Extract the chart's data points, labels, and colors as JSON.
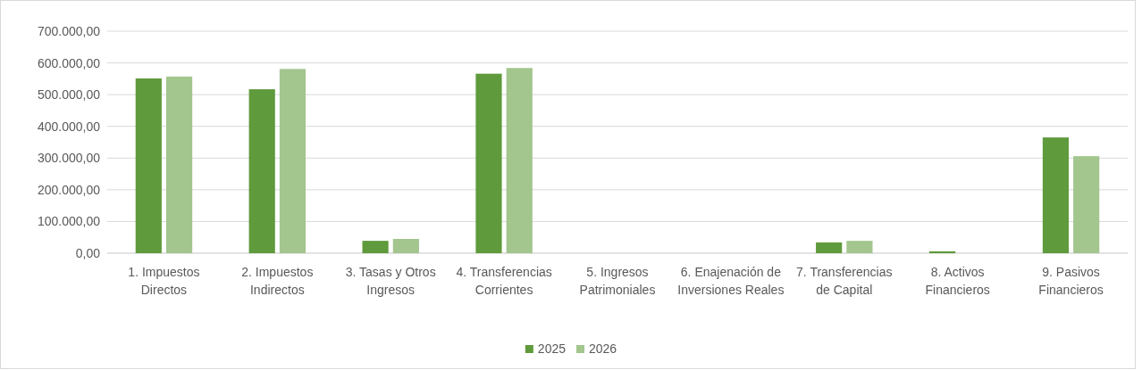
{
  "chart_data": {
    "type": "bar",
    "categories": [
      "1. Impuestos Directos",
      "2. Impuestos Indirectos",
      "3. Tasas y Otros Ingresos",
      "4. Transferencias Corrientes",
      "5. Ingresos Patrimoniales",
      "6. Enajenación de Inversiones Reales",
      "7. Transferencias de Capital",
      "8. Activos Financieros",
      "9. Pasivos Financieros"
    ],
    "series": [
      {
        "name": "2025",
        "color": "#5f9a3c",
        "values": [
          551000,
          517000,
          39000,
          566000,
          0,
          0,
          34000,
          6000,
          365000
        ]
      },
      {
        "name": "2026",
        "color": "#a3c58e",
        "values": [
          557000,
          581000,
          45000,
          584000,
          0,
          0,
          39000,
          0,
          306000
        ]
      }
    ],
    "ylim": [
      0,
      700000
    ],
    "yticks": [
      {
        "value": 0,
        "label": "0,00"
      },
      {
        "value": 100000,
        "label": "100.000,00"
      },
      {
        "value": 200000,
        "label": "200.000,00"
      },
      {
        "value": 300000,
        "label": "300.000,00"
      },
      {
        "value": 400000,
        "label": "400.000,00"
      },
      {
        "value": 500000,
        "label": "500.000,00"
      },
      {
        "value": 600000,
        "label": "600.000,00"
      },
      {
        "value": 700000,
        "label": "700.000,00"
      }
    ],
    "grid": "y",
    "legend": "bottom"
  }
}
